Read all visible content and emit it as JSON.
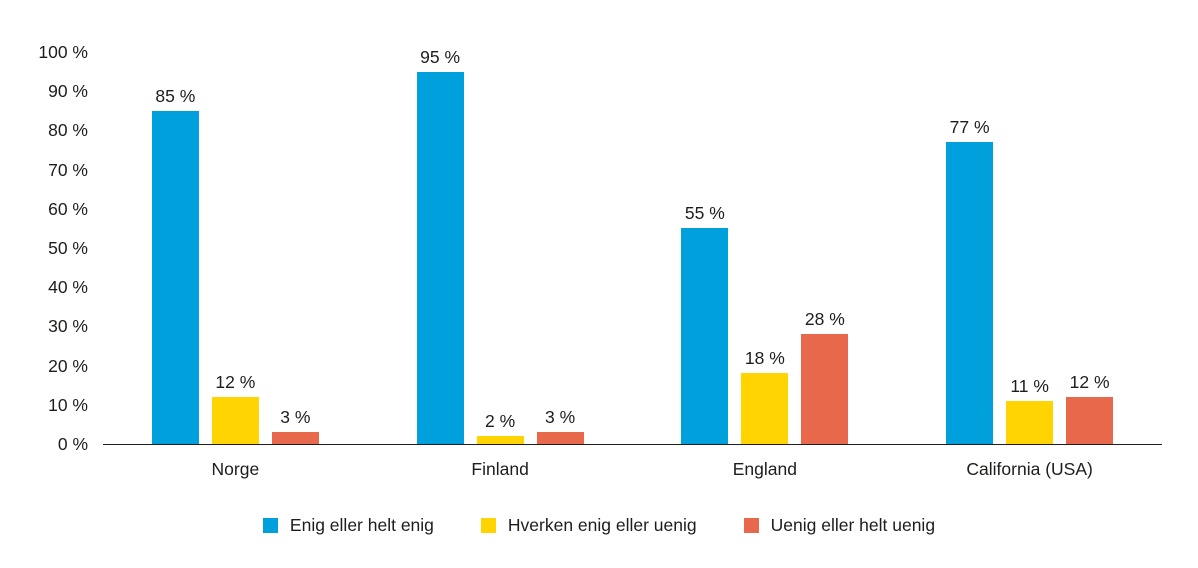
{
  "chart_data": {
    "type": "bar",
    "categories": [
      "Norge",
      "Finland",
      "England",
      "California (USA)"
    ],
    "series": [
      {
        "name": "Enig eller helt enig",
        "color": "#00A0DC",
        "values": [
          85,
          95,
          55,
          77
        ]
      },
      {
        "name": "Hverken enig eller uenig",
        "color": "#FFD400",
        "values": [
          12,
          2,
          18,
          11
        ]
      },
      {
        "name": "Uenig eller helt uenig",
        "color": "#E8684C",
        "values": [
          3,
          3,
          28,
          12
        ]
      }
    ],
    "value_suffix": " %",
    "ytick_values": [
      0,
      10,
      20,
      30,
      40,
      50,
      60,
      70,
      80,
      90,
      100
    ],
    "ytick_labels": [
      "0 %",
      "10 %",
      "20 %",
      "30 %",
      "40 %",
      "50 %",
      "60 %",
      "70 %",
      "80 %",
      "90 %",
      "100 %"
    ],
    "ylim": [
      0,
      100
    ],
    "grid": false,
    "legend_position": "bottom",
    "text_color": "#1d1d1b",
    "axis_color": "#1d1d1b"
  }
}
